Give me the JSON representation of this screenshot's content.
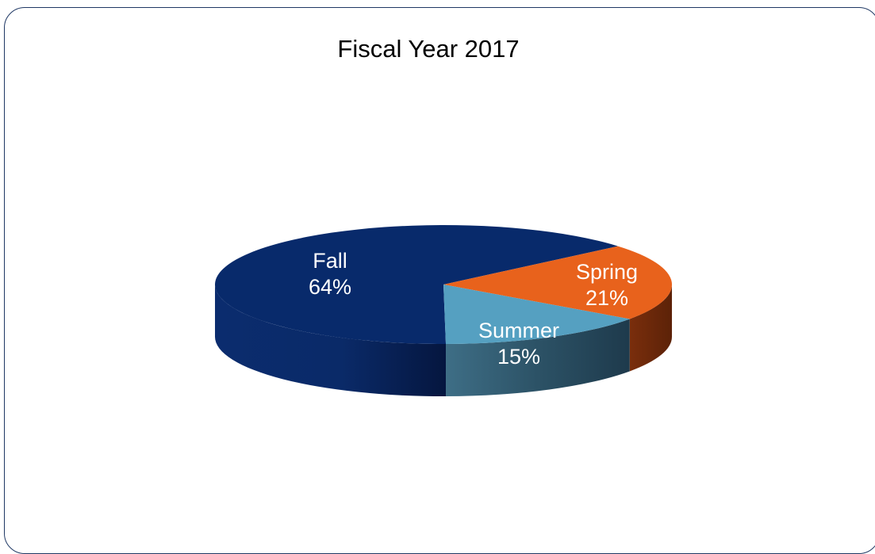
{
  "chart_data": {
    "type": "pie",
    "title": "Fiscal Year 2017",
    "style": "3d",
    "slices": [
      {
        "label": "Fall",
        "percent_label": "64%",
        "value": 64,
        "color": "#082a6b"
      },
      {
        "label": "Spring",
        "percent_label": "21%",
        "value": 21,
        "color": "#e8621c"
      },
      {
        "label": "Summer",
        "percent_label": "15%",
        "value": 15,
        "color": "#55a0c1"
      }
    ],
    "legend": "none"
  },
  "colors": {
    "frame_border": "#1f3864",
    "label_text": "#ffffff"
  }
}
